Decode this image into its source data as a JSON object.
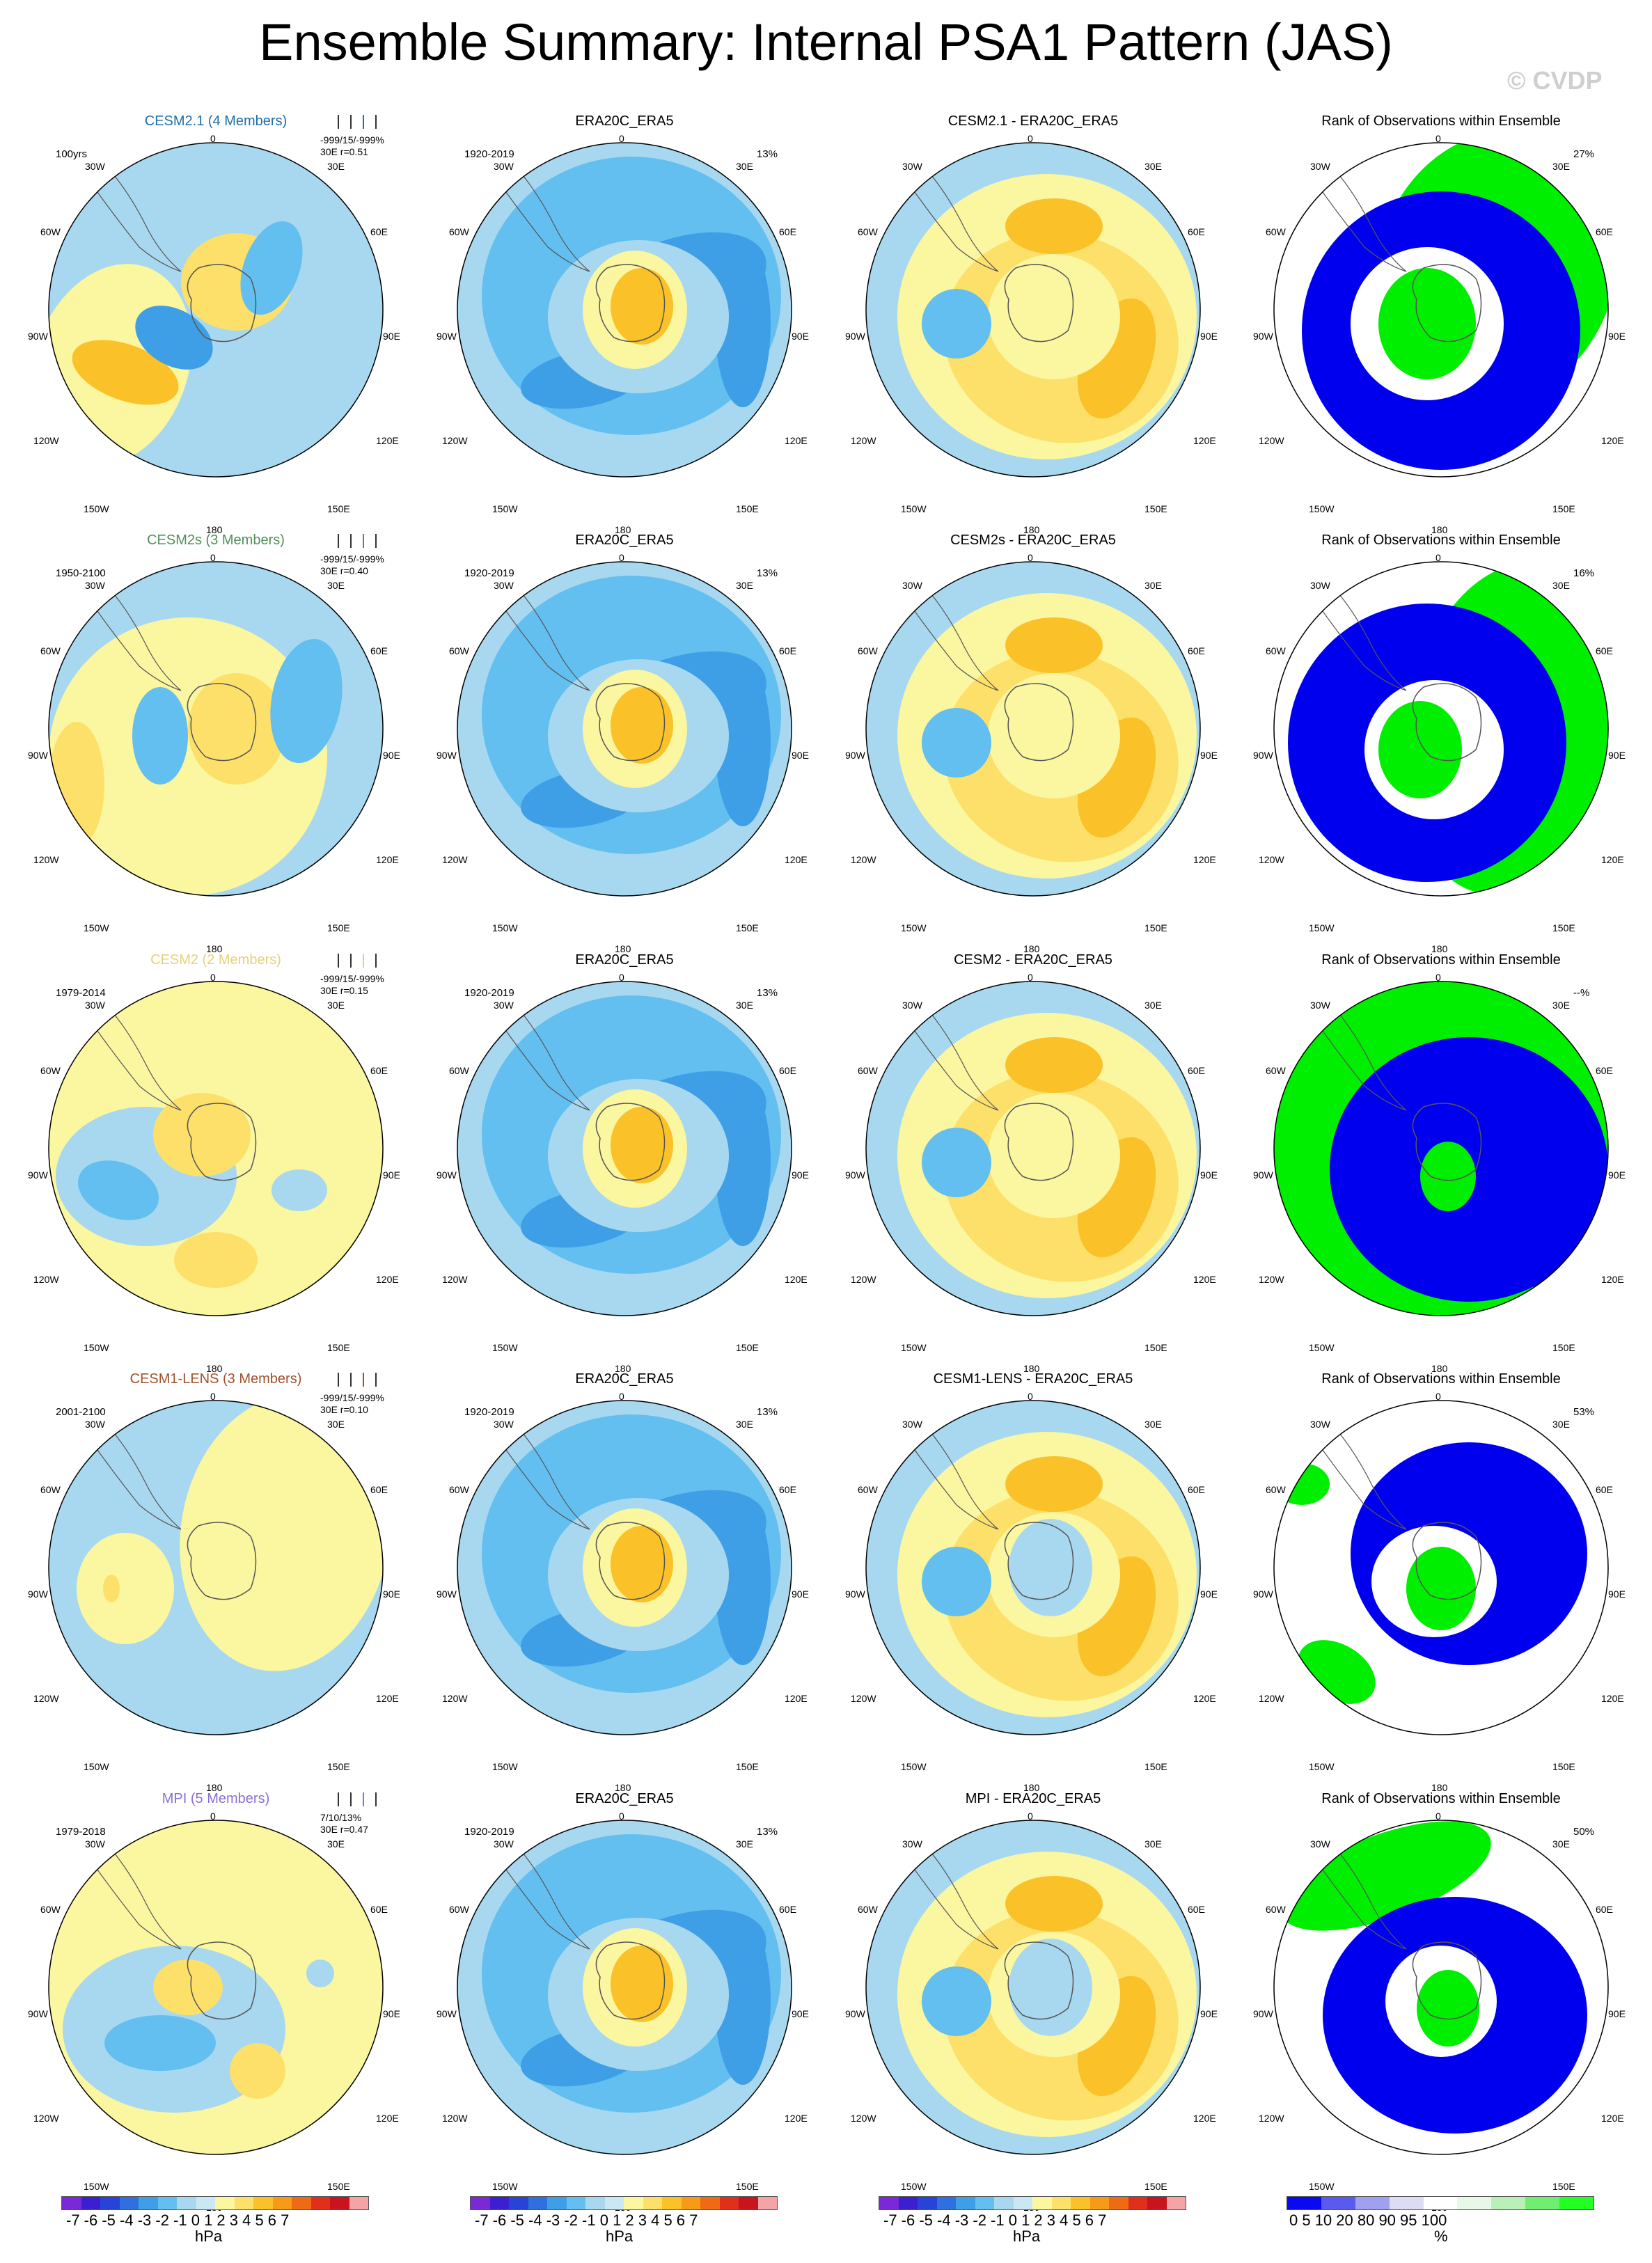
{
  "title": "Ensemble Summary: Internal PSA1 Pattern (JAS)",
  "copyright": "© CVDP",
  "map_labels": {
    "top": "0",
    "bottom": "180",
    "w30": "30W",
    "e30": "30E",
    "w60": "60W",
    "e60": "60E",
    "w90": "90W",
    "e90": "90E",
    "w120": "120W",
    "e120": "120E",
    "w150": "150W",
    "e150": "150E"
  },
  "rows": [
    {
      "model": "CESM2.1 (4 Members)",
      "model_color": "#1f6fa8",
      "period": "100yrs",
      "stats1": "-999/15/-999%",
      "stats2": "30E r=0.51",
      "obs_title": "ERA20C_ERA5",
      "obs_period": "1920-2019",
      "obs_pct": "13%",
      "diff_title": "CESM2.1 - ERA20C_ERA5",
      "rank_title": "Rank of Observations within Ensemble",
      "rank_pct": "27%"
    },
    {
      "model": "CESM2s (3 Members)",
      "model_color": "#4f8f5a",
      "period": "1950-2100",
      "stats1": "-999/15/-999%",
      "stats2": "30E r=0.40",
      "obs_title": "ERA20C_ERA5",
      "obs_period": "1920-2019",
      "obs_pct": "13%",
      "diff_title": "CESM2s - ERA20C_ERA5",
      "rank_title": "Rank of Observations within Ensemble",
      "rank_pct": "16%"
    },
    {
      "model": "CESM2 (2 Members)",
      "model_color": "#e6d27a",
      "period": "1979-2014",
      "stats1": "-999/15/-999%",
      "stats2": "30E r=0.15",
      "obs_title": "ERA20C_ERA5",
      "obs_period": "1920-2019",
      "obs_pct": "13%",
      "diff_title": "CESM2 - ERA20C_ERA5",
      "rank_title": "Rank of Observations within Ensemble",
      "rank_pct": "--%"
    },
    {
      "model": "CESM1-LENS (3 Members)",
      "model_color": "#a0522d",
      "period": "2001-2100",
      "stats1": "-999/15/-999%",
      "stats2": "30E r=0.10",
      "obs_title": "ERA20C_ERA5",
      "obs_period": "1920-2019",
      "obs_pct": "13%",
      "diff_title": "CESM1-LENS - ERA20C_ERA5",
      "rank_title": "Rank of Observations within Ensemble",
      "rank_pct": "53%"
    },
    {
      "model": "MPI (5 Members)",
      "model_color": "#8a6fd6",
      "period": "1979-2018",
      "stats1": "7/10/13%",
      "stats2": "30E r=0.47",
      "obs_title": "ERA20C_ERA5",
      "obs_period": "1920-2019",
      "obs_pct": "13%",
      "diff_title": "MPI - ERA20C_ERA5",
      "rank_title": "Rank of Observations within Ensemble",
      "rank_pct": "50%"
    }
  ],
  "colorbar": {
    "ticks": "-7 -6 -5 -4 -3 -2 -1 0  1  2  3  4  5  6  7",
    "unit": "hPa",
    "colors": [
      "#7b28d6",
      "#3c1fd0",
      "#2844d8",
      "#2f6fe0",
      "#3f9fe6",
      "#62bff0",
      "#a8d8ef",
      "#c9e8f3",
      "#fbf6a0",
      "#fde06a",
      "#fbc128",
      "#f79a18",
      "#ef6a14",
      "#e0301c",
      "#c8141c",
      "#f4a4a4"
    ]
  },
  "rank_colorbar": {
    "ticks": "0    5  10      20        80       90  95 100",
    "unit": "%",
    "colors": [
      "#0a0af0",
      "#5a5af0",
      "#a0a0f0",
      "#dcdcf4",
      "#ffffff",
      "#e8f8e8",
      "#b8f0b8",
      "#70ee70",
      "#22ff22"
    ]
  },
  "palette": {
    "neg_light": "#a8d8ef",
    "neg_mid": "#62bff0",
    "neg_dark": "#3f9fe6",
    "neg_darkest": "#2f6fe0",
    "pos_light": "#fbf6a0",
    "pos_mid": "#fde06a",
    "pos_dark": "#fbc128",
    "pos_darker": "#f79a18",
    "rank_blue": "#0000ee",
    "rank_green": "#00ee00"
  }
}
